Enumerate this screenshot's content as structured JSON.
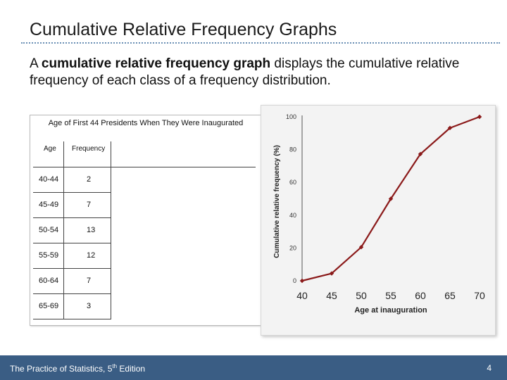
{
  "slide": {
    "title": "Cumulative Relative Frequency Graphs",
    "body_bold": "cumulative relative frequency graph",
    "body_pre": "A ",
    "body_post": " displays the cumulative relative frequency of each class of a frequency distribution.",
    "footer_pre": "The Practice of Statistics, 5",
    "footer_sup": "th",
    "footer_post": " Edition",
    "page_number": "4"
  },
  "table": {
    "title": "Age of First 44 Presidents When They Were Inaugurated",
    "headers": [
      "Age",
      "Frequency"
    ],
    "rows": [
      {
        "age": "40-44",
        "frequency": "2"
      },
      {
        "age": "45-49",
        "frequency": "7"
      },
      {
        "age": "50-54",
        "frequency": "13"
      },
      {
        "age": "55-59",
        "frequency": "12"
      },
      {
        "age": "60-64",
        "frequency": "7"
      },
      {
        "age": "65-69",
        "frequency": "3"
      }
    ]
  },
  "chart_data": {
    "type": "line",
    "xlabel": "Age at inauguration",
    "ylabel": "Cumulative relative frequency (%)",
    "x": [
      40,
      45,
      50,
      55,
      60,
      65,
      70
    ],
    "x_ticks": [
      "40",
      "45",
      "50",
      "55",
      "60",
      "65",
      "70"
    ],
    "y_ticks": [
      "0",
      "20",
      "40",
      "60",
      "80",
      "100"
    ],
    "series": [
      {
        "values": [
          0,
          4.5,
          20.5,
          50,
          77.3,
          93.2,
          100
        ]
      }
    ],
    "xlim": [
      40,
      70
    ],
    "ylim": [
      0,
      100
    ],
    "grid": false,
    "colors": {
      "line": "#8b1a1a",
      "marker": "#8b1a1a",
      "axis": "#555555"
    }
  }
}
